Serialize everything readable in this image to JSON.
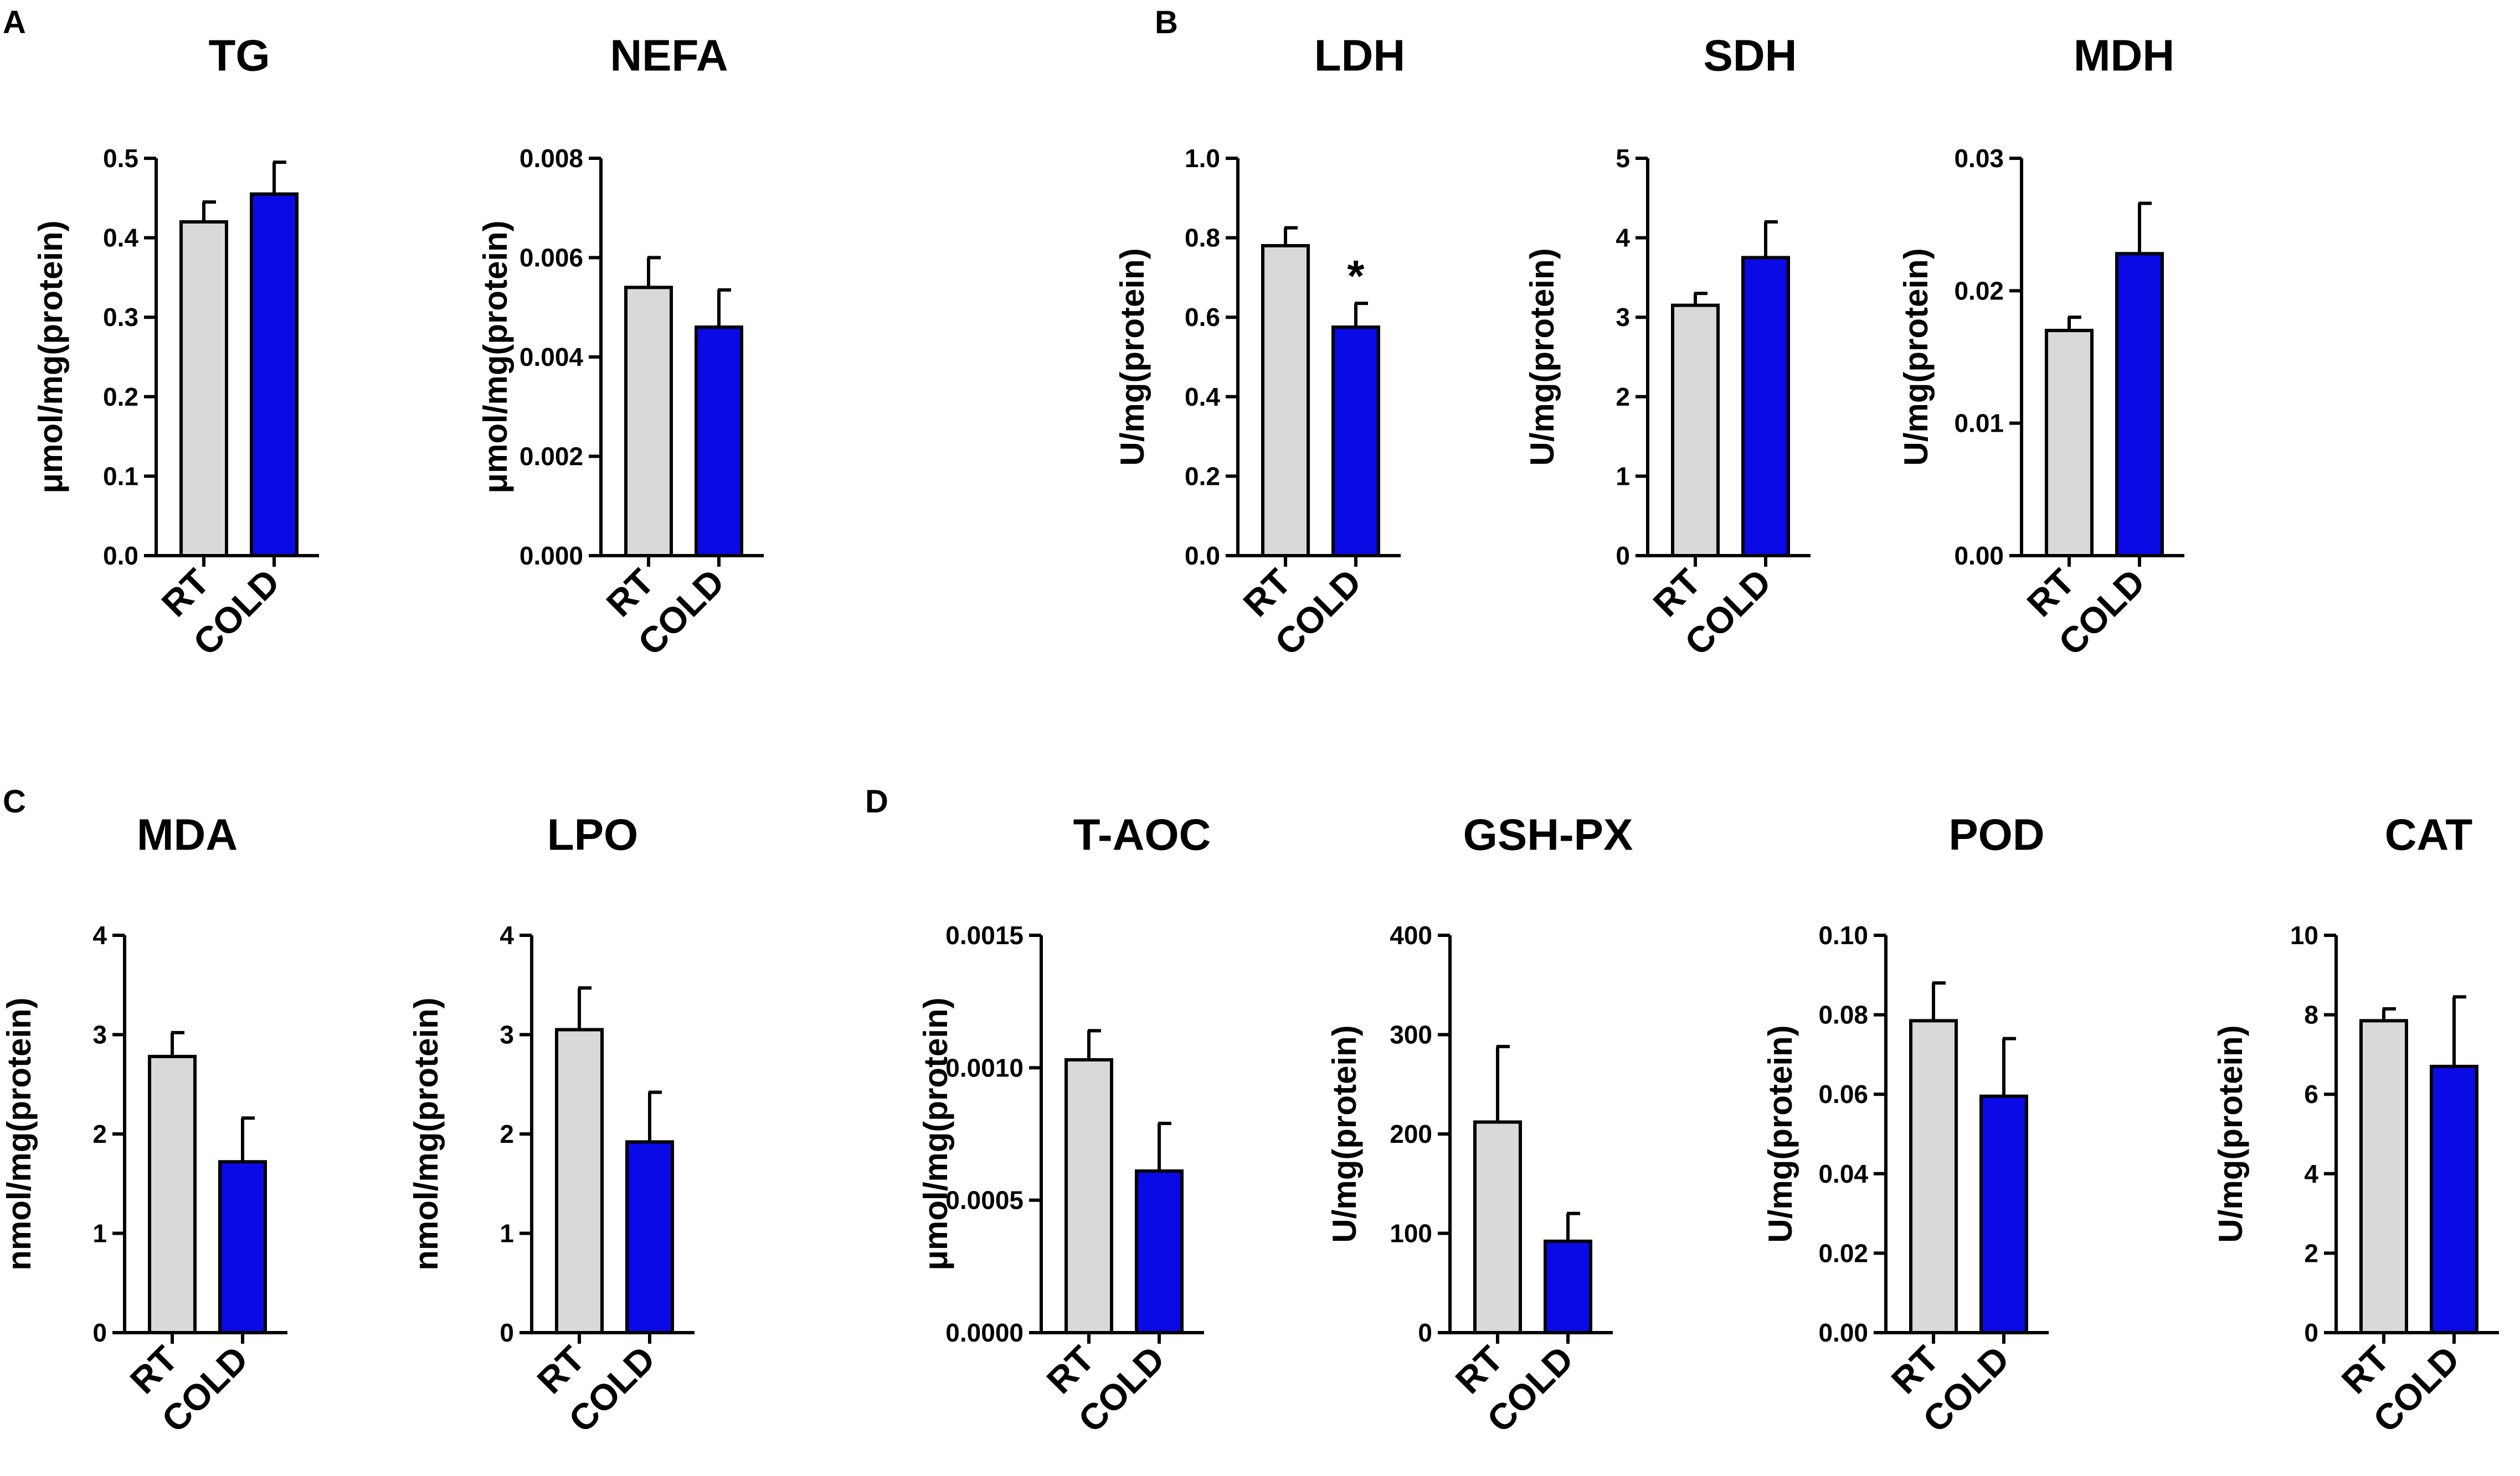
{
  "colors": {
    "rt": "#d9d9d9",
    "cold": "#0a0ae6",
    "axis": "#000000"
  },
  "panel_letters": [
    "A",
    "B",
    "C",
    "D"
  ],
  "chart_data": [
    {
      "type": "bar",
      "title": "TG",
      "ylabel": "μmol/mg(protein)",
      "categories": [
        "RT",
        "COLD"
      ],
      "values": [
        0.42,
        0.455
      ],
      "errors": [
        0.025,
        0.04
      ],
      "ylim": [
        0,
        0.5
      ],
      "yticks": [
        "0.0",
        "0.1",
        "0.2",
        "0.3",
        "0.4",
        "0.5"
      ],
      "annotations": [
        "",
        ""
      ]
    },
    {
      "type": "bar",
      "title": "NEFA",
      "ylabel": "μmol/mg(protein)",
      "categories": [
        "RT",
        "COLD"
      ],
      "values": [
        0.0054,
        0.0046
      ],
      "errors": [
        0.0006,
        0.00075
      ],
      "ylim": [
        0,
        0.008
      ],
      "yticks": [
        "0.000",
        "0.002",
        "0.004",
        "0.006",
        "0.008"
      ],
      "annotations": [
        "",
        ""
      ]
    },
    {
      "type": "bar",
      "title": "LDH",
      "ylabel": "U/mg(protein)",
      "categories": [
        "RT",
        "COLD"
      ],
      "values": [
        0.78,
        0.575
      ],
      "errors": [
        0.045,
        0.06
      ],
      "ylim": [
        0,
        1.0
      ],
      "yticks": [
        "0.0",
        "0.2",
        "0.4",
        "0.6",
        "0.8",
        "1.0"
      ],
      "annotations": [
        "",
        "*"
      ]
    },
    {
      "type": "bar",
      "title": "SDH",
      "ylabel": "U/mg(protein)",
      "categories": [
        "RT",
        "COLD"
      ],
      "values": [
        3.15,
        3.75
      ],
      "errors": [
        0.15,
        0.45
      ],
      "ylim": [
        0,
        5
      ],
      "yticks": [
        "0",
        "1",
        "2",
        "3",
        "4",
        "5"
      ],
      "annotations": [
        "",
        ""
      ]
    },
    {
      "type": "bar",
      "title": "MDH",
      "ylabel": "U/mg(protein)",
      "categories": [
        "RT",
        "COLD"
      ],
      "values": [
        0.017,
        0.0228
      ],
      "errors": [
        0.001,
        0.0038
      ],
      "ylim": [
        0,
        0.03
      ],
      "yticks": [
        "0.00",
        "0.01",
        "0.02",
        "0.03"
      ],
      "annotations": [
        "",
        ""
      ]
    },
    {
      "type": "bar",
      "title": "MDA",
      "ylabel": "nmol/mg(protein)",
      "categories": [
        "RT",
        "COLD"
      ],
      "values": [
        2.78,
        1.72
      ],
      "errors": [
        0.24,
        0.44
      ],
      "ylim": [
        0,
        4
      ],
      "yticks": [
        "0",
        "1",
        "2",
        "3",
        "4"
      ],
      "annotations": [
        "",
        ""
      ]
    },
    {
      "type": "bar",
      "title": "LPO",
      "ylabel": "nmol/mg(protein)",
      "categories": [
        "RT",
        "COLD"
      ],
      "values": [
        3.05,
        1.92
      ],
      "errors": [
        0.42,
        0.5
      ],
      "ylim": [
        0,
        4
      ],
      "yticks": [
        "0",
        "1",
        "2",
        "3",
        "4"
      ],
      "annotations": [
        "",
        ""
      ]
    },
    {
      "type": "bar",
      "title": "T-AOC",
      "ylabel": "μmol/mg(protein)",
      "categories": [
        "RT",
        "COLD"
      ],
      "values": [
        0.00103,
        0.00061
      ],
      "errors": [
        0.00011,
        0.00018
      ],
      "ylim": [
        0,
        0.0015
      ],
      "yticks": [
        "0.0000",
        "0.0005",
        "0.0010",
        "0.0015"
      ],
      "annotations": [
        "",
        ""
      ]
    },
    {
      "type": "bar",
      "title": "GSH-PX",
      "ylabel": "U/mg(protein)",
      "categories": [
        "RT",
        "COLD"
      ],
      "values": [
        212,
        92
      ],
      "errors": [
        76,
        28
      ],
      "ylim": [
        0,
        400
      ],
      "yticks": [
        "0",
        "100",
        "200",
        "300",
        "400"
      ],
      "annotations": [
        "",
        ""
      ]
    },
    {
      "type": "bar",
      "title": "POD",
      "ylabel": "U/mg(protein)",
      "categories": [
        "RT",
        "COLD"
      ],
      "values": [
        0.0785,
        0.0595
      ],
      "errors": [
        0.0095,
        0.0145
      ],
      "ylim": [
        0,
        0.1
      ],
      "yticks": [
        "0.00",
        "0.02",
        "0.04",
        "0.06",
        "0.08",
        "0.10"
      ],
      "annotations": [
        "",
        ""
      ]
    },
    {
      "type": "bar",
      "title": "CAT",
      "ylabel": "U/mg(protein)",
      "categories": [
        "RT",
        "COLD"
      ],
      "values": [
        7.85,
        6.7
      ],
      "errors": [
        0.3,
        1.75
      ],
      "ylim": [
        0,
        10
      ],
      "yticks": [
        "0",
        "2",
        "4",
        "6",
        "8",
        "10"
      ],
      "annotations": [
        "",
        ""
      ]
    }
  ]
}
